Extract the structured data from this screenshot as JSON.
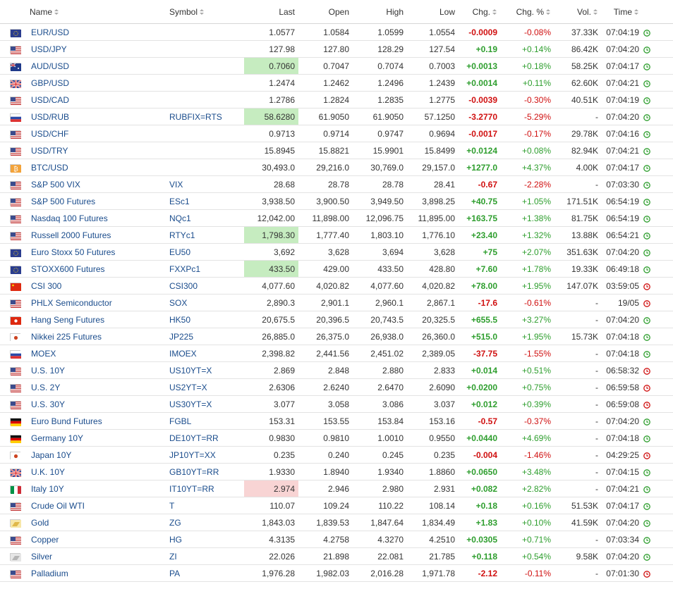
{
  "columns": {
    "name": "Name",
    "symbol": "Symbol",
    "last": "Last",
    "open": "Open",
    "high": "High",
    "low": "Low",
    "chg": "Chg.",
    "chg_pct": "Chg. %",
    "vol": "Vol.",
    "time": "Time"
  },
  "colors": {
    "up": "#2e9e2e",
    "down": "#d01010",
    "link": "#1a4c8c",
    "highlight_up": "#c6ecc0",
    "highlight_down": "#f8d4d4",
    "clock_live": "#2e9e2e",
    "clock_closed": "#d01010"
  },
  "rows": [
    {
      "flag": "eu",
      "name": "EUR/USD",
      "symbol": "",
      "last": "1.0577",
      "open": "1.0584",
      "high": "1.0599",
      "low": "1.0554",
      "chg": "-0.0009",
      "chg_pct": "-0.08%",
      "vol": "37.33K",
      "time": "07:04:19",
      "dir": "dn",
      "hl": "",
      "clock": "live"
    },
    {
      "flag": "us",
      "name": "USD/JPY",
      "symbol": "",
      "last": "127.98",
      "open": "127.80",
      "high": "128.29",
      "low": "127.54",
      "chg": "+0.19",
      "chg_pct": "+0.14%",
      "vol": "86.42K",
      "time": "07:04:20",
      "dir": "up",
      "hl": "",
      "clock": "live"
    },
    {
      "flag": "au",
      "name": "AUD/USD",
      "symbol": "",
      "last": "0.7060",
      "open": "0.7047",
      "high": "0.7074",
      "low": "0.7003",
      "chg": "+0.0013",
      "chg_pct": "+0.18%",
      "vol": "58.25K",
      "time": "07:04:17",
      "dir": "up",
      "hl": "up",
      "clock": "live"
    },
    {
      "flag": "gb",
      "name": "GBP/USD",
      "symbol": "",
      "last": "1.2474",
      "open": "1.2462",
      "high": "1.2496",
      "low": "1.2439",
      "chg": "+0.0014",
      "chg_pct": "+0.11%",
      "vol": "62.60K",
      "time": "07:04:21",
      "dir": "up",
      "hl": "",
      "clock": "live"
    },
    {
      "flag": "us",
      "name": "USD/CAD",
      "symbol": "",
      "last": "1.2786",
      "open": "1.2824",
      "high": "1.2835",
      "low": "1.2775",
      "chg": "-0.0039",
      "chg_pct": "-0.30%",
      "vol": "40.51K",
      "time": "07:04:19",
      "dir": "dn",
      "hl": "",
      "clock": "live"
    },
    {
      "flag": "ru",
      "name": "USD/RUB",
      "symbol": "RUBFIX=RTS",
      "last": "58.6280",
      "open": "61.9050",
      "high": "61.9050",
      "low": "57.1250",
      "chg": "-3.2770",
      "chg_pct": "-5.29%",
      "vol": "-",
      "time": "07:04:20",
      "dir": "dn",
      "hl": "up",
      "clock": "live"
    },
    {
      "flag": "us",
      "name": "USD/CHF",
      "symbol": "",
      "last": "0.9713",
      "open": "0.9714",
      "high": "0.9747",
      "low": "0.9694",
      "chg": "-0.0017",
      "chg_pct": "-0.17%",
      "vol": "29.78K",
      "time": "07:04:16",
      "dir": "dn",
      "hl": "",
      "clock": "live"
    },
    {
      "flag": "us",
      "name": "USD/TRY",
      "symbol": "",
      "last": "15.8945",
      "open": "15.8821",
      "high": "15.9901",
      "low": "15.8499",
      "chg": "+0.0124",
      "chg_pct": "+0.08%",
      "vol": "82.94K",
      "time": "07:04:21",
      "dir": "up",
      "hl": "",
      "clock": "live"
    },
    {
      "flag": "btc",
      "name": "BTC/USD",
      "symbol": "",
      "last": "30,493.0",
      "open": "29,216.0",
      "high": "30,769.0",
      "low": "29,157.0",
      "chg": "+1277.0",
      "chg_pct": "+4.37%",
      "vol": "4.00K",
      "time": "07:04:17",
      "dir": "up",
      "hl": "",
      "clock": "live"
    },
    {
      "flag": "us",
      "name": "S&P 500 VIX",
      "symbol": "VIX",
      "last": "28.68",
      "open": "28.78",
      "high": "28.78",
      "low": "28.41",
      "chg": "-0.67",
      "chg_pct": "-2.28%",
      "vol": "-",
      "time": "07:03:30",
      "dir": "dn",
      "hl": "",
      "clock": "live"
    },
    {
      "flag": "us",
      "name": "S&P 500 Futures",
      "symbol": "ESc1",
      "last": "3,938.50",
      "open": "3,900.50",
      "high": "3,949.50",
      "low": "3,898.25",
      "chg": "+40.75",
      "chg_pct": "+1.05%",
      "vol": "171.51K",
      "time": "06:54:19",
      "dir": "up",
      "hl": "",
      "clock": "live"
    },
    {
      "flag": "us",
      "name": "Nasdaq 100 Futures",
      "symbol": "NQc1",
      "last": "12,042.00",
      "open": "11,898.00",
      "high": "12,096.75",
      "low": "11,895.00",
      "chg": "+163.75",
      "chg_pct": "+1.38%",
      "vol": "81.75K",
      "time": "06:54:19",
      "dir": "up",
      "hl": "",
      "clock": "live"
    },
    {
      "flag": "us",
      "name": "Russell 2000 Futures",
      "symbol": "RTYc1",
      "last": "1,798.30",
      "open": "1,777.40",
      "high": "1,803.10",
      "low": "1,776.10",
      "chg": "+23.40",
      "chg_pct": "+1.32%",
      "vol": "13.88K",
      "time": "06:54:21",
      "dir": "up",
      "hl": "up",
      "clock": "live"
    },
    {
      "flag": "eu",
      "name": "Euro Stoxx 50 Futures",
      "symbol": "EU50",
      "last": "3,692",
      "open": "3,628",
      "high": "3,694",
      "low": "3,628",
      "chg": "+75",
      "chg_pct": "+2.07%",
      "vol": "351.63K",
      "time": "07:04:20",
      "dir": "up",
      "hl": "",
      "clock": "live"
    },
    {
      "flag": "eu",
      "name": "STOXX600 Futures",
      "symbol": "FXXPc1",
      "last": "433.50",
      "open": "429.00",
      "high": "433.50",
      "low": "428.80",
      "chg": "+7.60",
      "chg_pct": "+1.78%",
      "vol": "19.33K",
      "time": "06:49:18",
      "dir": "up",
      "hl": "up",
      "clock": "live"
    },
    {
      "flag": "cn",
      "name": "CSI 300",
      "symbol": "CSI300",
      "last": "4,077.60",
      "open": "4,020.82",
      "high": "4,077.60",
      "low": "4,020.82",
      "chg": "+78.00",
      "chg_pct": "+1.95%",
      "vol": "147.07K",
      "time": "03:59:05",
      "dir": "up",
      "hl": "",
      "clock": "closed"
    },
    {
      "flag": "us",
      "name": "PHLX Semiconductor",
      "symbol": "SOX",
      "last": "2,890.3",
      "open": "2,901.1",
      "high": "2,960.1",
      "low": "2,867.1",
      "chg": "-17.6",
      "chg_pct": "-0.61%",
      "vol": "-",
      "time": "19/05",
      "dir": "dn",
      "hl": "",
      "clock": "closed"
    },
    {
      "flag": "hk",
      "name": "Hang Seng Futures",
      "symbol": "HK50",
      "last": "20,675.5",
      "open": "20,396.5",
      "high": "20,743.5",
      "low": "20,325.5",
      "chg": "+655.5",
      "chg_pct": "+3.27%",
      "vol": "-",
      "time": "07:04:20",
      "dir": "up",
      "hl": "",
      "clock": "live"
    },
    {
      "flag": "jp",
      "name": "Nikkei 225 Futures",
      "symbol": "JP225",
      "last": "26,885.0",
      "open": "26,375.0",
      "high": "26,938.0",
      "low": "26,360.0",
      "chg": "+515.0",
      "chg_pct": "+1.95%",
      "vol": "15.73K",
      "time": "07:04:18",
      "dir": "up",
      "hl": "",
      "clock": "live"
    },
    {
      "flag": "ru",
      "name": "MOEX",
      "symbol": "IMOEX",
      "last": "2,398.82",
      "open": "2,441.56",
      "high": "2,451.02",
      "low": "2,389.05",
      "chg": "-37.75",
      "chg_pct": "-1.55%",
      "vol": "-",
      "time": "07:04:18",
      "dir": "dn",
      "hl": "",
      "clock": "live"
    },
    {
      "flag": "us",
      "name": "U.S. 10Y",
      "symbol": "US10YT=X",
      "last": "2.869",
      "open": "2.848",
      "high": "2.880",
      "low": "2.833",
      "chg": "+0.014",
      "chg_pct": "+0.51%",
      "vol": "-",
      "time": "06:58:32",
      "dir": "up",
      "hl": "",
      "clock": "closed"
    },
    {
      "flag": "us",
      "name": "U.S. 2Y",
      "symbol": "US2YT=X",
      "last": "2.6306",
      "open": "2.6240",
      "high": "2.6470",
      "low": "2.6090",
      "chg": "+0.0200",
      "chg_pct": "+0.75%",
      "vol": "-",
      "time": "06:59:58",
      "dir": "up",
      "hl": "",
      "clock": "closed"
    },
    {
      "flag": "us",
      "name": "U.S. 30Y",
      "symbol": "US30YT=X",
      "last": "3.077",
      "open": "3.058",
      "high": "3.086",
      "low": "3.037",
      "chg": "+0.012",
      "chg_pct": "+0.39%",
      "vol": "-",
      "time": "06:59:08",
      "dir": "up",
      "hl": "",
      "clock": "closed"
    },
    {
      "flag": "de",
      "name": "Euro Bund Futures",
      "symbol": "FGBL",
      "last": "153.31",
      "open": "153.55",
      "high": "153.84",
      "low": "153.16",
      "chg": "-0.57",
      "chg_pct": "-0.37%",
      "vol": "-",
      "time": "07:04:20",
      "dir": "dn",
      "hl": "",
      "clock": "live"
    },
    {
      "flag": "de",
      "name": "Germany 10Y",
      "symbol": "DE10YT=RR",
      "last": "0.9830",
      "open": "0.9810",
      "high": "1.0010",
      "low": "0.9550",
      "chg": "+0.0440",
      "chg_pct": "+4.69%",
      "vol": "-",
      "time": "07:04:18",
      "dir": "up",
      "hl": "",
      "clock": "live"
    },
    {
      "flag": "jp",
      "name": "Japan 10Y",
      "symbol": "JP10YT=XX",
      "last": "0.235",
      "open": "0.240",
      "high": "0.245",
      "low": "0.235",
      "chg": "-0.004",
      "chg_pct": "-1.46%",
      "vol": "-",
      "time": "04:29:25",
      "dir": "dn",
      "hl": "",
      "clock": "closed"
    },
    {
      "flag": "gb",
      "name": "U.K. 10Y",
      "symbol": "GB10YT=RR",
      "last": "1.9330",
      "open": "1.8940",
      "high": "1.9340",
      "low": "1.8860",
      "chg": "+0.0650",
      "chg_pct": "+3.48%",
      "vol": "-",
      "time": "07:04:15",
      "dir": "up",
      "hl": "",
      "clock": "live"
    },
    {
      "flag": "it",
      "name": "Italy 10Y",
      "symbol": "IT10YT=RR",
      "last": "2.974",
      "open": "2.946",
      "high": "2.980",
      "low": "2.931",
      "chg": "+0.082",
      "chg_pct": "+2.82%",
      "vol": "-",
      "time": "07:04:21",
      "dir": "up",
      "hl": "dn",
      "clock": "live"
    },
    {
      "flag": "us",
      "name": "Crude Oil WTI",
      "symbol": "T",
      "last": "110.07",
      "open": "109.24",
      "high": "110.22",
      "low": "108.14",
      "chg": "+0.18",
      "chg_pct": "+0.16%",
      "vol": "51.53K",
      "time": "07:04:17",
      "dir": "up",
      "hl": "",
      "clock": "live"
    },
    {
      "flag": "gold",
      "name": "Gold",
      "symbol": "ZG",
      "last": "1,843.03",
      "open": "1,839.53",
      "high": "1,847.64",
      "low": "1,834.49",
      "chg": "+1.83",
      "chg_pct": "+0.10%",
      "vol": "41.59K",
      "time": "07:04:20",
      "dir": "up",
      "hl": "",
      "clock": "live"
    },
    {
      "flag": "us",
      "name": "Copper",
      "symbol": "HG",
      "last": "4.3135",
      "open": "4.2758",
      "high": "4.3270",
      "low": "4.2510",
      "chg": "+0.0305",
      "chg_pct": "+0.71%",
      "vol": "-",
      "time": "07:03:34",
      "dir": "up",
      "hl": "",
      "clock": "live"
    },
    {
      "flag": "silver",
      "name": "Silver",
      "symbol": "ZI",
      "last": "22.026",
      "open": "21.898",
      "high": "22.081",
      "low": "21.785",
      "chg": "+0.118",
      "chg_pct": "+0.54%",
      "vol": "9.58K",
      "time": "07:04:20",
      "dir": "up",
      "hl": "",
      "clock": "live"
    },
    {
      "flag": "us",
      "name": "Palladium",
      "symbol": "PA",
      "last": "1,976.28",
      "open": "1,982.03",
      "high": "2,016.28",
      "low": "1,971.78",
      "chg": "-2.12",
      "chg_pct": "-0.11%",
      "vol": "-",
      "time": "07:01:30",
      "dir": "dn",
      "hl": "",
      "clock": "closed"
    }
  ]
}
